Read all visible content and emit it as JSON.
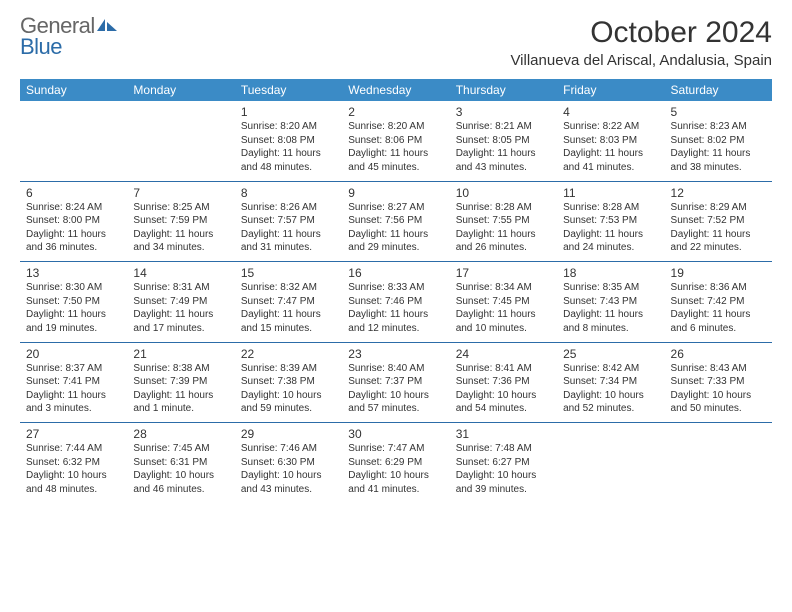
{
  "logo": {
    "word1": "General",
    "word2": "Blue"
  },
  "title": "October 2024",
  "location": "Villanueva del Ariscal, Andalusia, Spain",
  "colors": {
    "header_bg": "#3b8bc6",
    "divider": "#2c6ca8",
    "logo_blue": "#2c6ca8",
    "logo_gray": "#666666",
    "text": "#333333"
  },
  "day_headers": [
    "Sunday",
    "Monday",
    "Tuesday",
    "Wednesday",
    "Thursday",
    "Friday",
    "Saturday"
  ],
  "weeks": [
    [
      null,
      null,
      {
        "num": "1",
        "sunrise": "Sunrise: 8:20 AM",
        "sunset": "Sunset: 8:08 PM",
        "day1": "Daylight: 11 hours",
        "day2": "and 48 minutes."
      },
      {
        "num": "2",
        "sunrise": "Sunrise: 8:20 AM",
        "sunset": "Sunset: 8:06 PM",
        "day1": "Daylight: 11 hours",
        "day2": "and 45 minutes."
      },
      {
        "num": "3",
        "sunrise": "Sunrise: 8:21 AM",
        "sunset": "Sunset: 8:05 PM",
        "day1": "Daylight: 11 hours",
        "day2": "and 43 minutes."
      },
      {
        "num": "4",
        "sunrise": "Sunrise: 8:22 AM",
        "sunset": "Sunset: 8:03 PM",
        "day1": "Daylight: 11 hours",
        "day2": "and 41 minutes."
      },
      {
        "num": "5",
        "sunrise": "Sunrise: 8:23 AM",
        "sunset": "Sunset: 8:02 PM",
        "day1": "Daylight: 11 hours",
        "day2": "and 38 minutes."
      }
    ],
    [
      {
        "num": "6",
        "sunrise": "Sunrise: 8:24 AM",
        "sunset": "Sunset: 8:00 PM",
        "day1": "Daylight: 11 hours",
        "day2": "and 36 minutes."
      },
      {
        "num": "7",
        "sunrise": "Sunrise: 8:25 AM",
        "sunset": "Sunset: 7:59 PM",
        "day1": "Daylight: 11 hours",
        "day2": "and 34 minutes."
      },
      {
        "num": "8",
        "sunrise": "Sunrise: 8:26 AM",
        "sunset": "Sunset: 7:57 PM",
        "day1": "Daylight: 11 hours",
        "day2": "and 31 minutes."
      },
      {
        "num": "9",
        "sunrise": "Sunrise: 8:27 AM",
        "sunset": "Sunset: 7:56 PM",
        "day1": "Daylight: 11 hours",
        "day2": "and 29 minutes."
      },
      {
        "num": "10",
        "sunrise": "Sunrise: 8:28 AM",
        "sunset": "Sunset: 7:55 PM",
        "day1": "Daylight: 11 hours",
        "day2": "and 26 minutes."
      },
      {
        "num": "11",
        "sunrise": "Sunrise: 8:28 AM",
        "sunset": "Sunset: 7:53 PM",
        "day1": "Daylight: 11 hours",
        "day2": "and 24 minutes."
      },
      {
        "num": "12",
        "sunrise": "Sunrise: 8:29 AM",
        "sunset": "Sunset: 7:52 PM",
        "day1": "Daylight: 11 hours",
        "day2": "and 22 minutes."
      }
    ],
    [
      {
        "num": "13",
        "sunrise": "Sunrise: 8:30 AM",
        "sunset": "Sunset: 7:50 PM",
        "day1": "Daylight: 11 hours",
        "day2": "and 19 minutes."
      },
      {
        "num": "14",
        "sunrise": "Sunrise: 8:31 AM",
        "sunset": "Sunset: 7:49 PM",
        "day1": "Daylight: 11 hours",
        "day2": "and 17 minutes."
      },
      {
        "num": "15",
        "sunrise": "Sunrise: 8:32 AM",
        "sunset": "Sunset: 7:47 PM",
        "day1": "Daylight: 11 hours",
        "day2": "and 15 minutes."
      },
      {
        "num": "16",
        "sunrise": "Sunrise: 8:33 AM",
        "sunset": "Sunset: 7:46 PM",
        "day1": "Daylight: 11 hours",
        "day2": "and 12 minutes."
      },
      {
        "num": "17",
        "sunrise": "Sunrise: 8:34 AM",
        "sunset": "Sunset: 7:45 PM",
        "day1": "Daylight: 11 hours",
        "day2": "and 10 minutes."
      },
      {
        "num": "18",
        "sunrise": "Sunrise: 8:35 AM",
        "sunset": "Sunset: 7:43 PM",
        "day1": "Daylight: 11 hours",
        "day2": "and 8 minutes."
      },
      {
        "num": "19",
        "sunrise": "Sunrise: 8:36 AM",
        "sunset": "Sunset: 7:42 PM",
        "day1": "Daylight: 11 hours",
        "day2": "and 6 minutes."
      }
    ],
    [
      {
        "num": "20",
        "sunrise": "Sunrise: 8:37 AM",
        "sunset": "Sunset: 7:41 PM",
        "day1": "Daylight: 11 hours",
        "day2": "and 3 minutes."
      },
      {
        "num": "21",
        "sunrise": "Sunrise: 8:38 AM",
        "sunset": "Sunset: 7:39 PM",
        "day1": "Daylight: 11 hours",
        "day2": "and 1 minute."
      },
      {
        "num": "22",
        "sunrise": "Sunrise: 8:39 AM",
        "sunset": "Sunset: 7:38 PM",
        "day1": "Daylight: 10 hours",
        "day2": "and 59 minutes."
      },
      {
        "num": "23",
        "sunrise": "Sunrise: 8:40 AM",
        "sunset": "Sunset: 7:37 PM",
        "day1": "Daylight: 10 hours",
        "day2": "and 57 minutes."
      },
      {
        "num": "24",
        "sunrise": "Sunrise: 8:41 AM",
        "sunset": "Sunset: 7:36 PM",
        "day1": "Daylight: 10 hours",
        "day2": "and 54 minutes."
      },
      {
        "num": "25",
        "sunrise": "Sunrise: 8:42 AM",
        "sunset": "Sunset: 7:34 PM",
        "day1": "Daylight: 10 hours",
        "day2": "and 52 minutes."
      },
      {
        "num": "26",
        "sunrise": "Sunrise: 8:43 AM",
        "sunset": "Sunset: 7:33 PM",
        "day1": "Daylight: 10 hours",
        "day2": "and 50 minutes."
      }
    ],
    [
      {
        "num": "27",
        "sunrise": "Sunrise: 7:44 AM",
        "sunset": "Sunset: 6:32 PM",
        "day1": "Daylight: 10 hours",
        "day2": "and 48 minutes."
      },
      {
        "num": "28",
        "sunrise": "Sunrise: 7:45 AM",
        "sunset": "Sunset: 6:31 PM",
        "day1": "Daylight: 10 hours",
        "day2": "and 46 minutes."
      },
      {
        "num": "29",
        "sunrise": "Sunrise: 7:46 AM",
        "sunset": "Sunset: 6:30 PM",
        "day1": "Daylight: 10 hours",
        "day2": "and 43 minutes."
      },
      {
        "num": "30",
        "sunrise": "Sunrise: 7:47 AM",
        "sunset": "Sunset: 6:29 PM",
        "day1": "Daylight: 10 hours",
        "day2": "and 41 minutes."
      },
      {
        "num": "31",
        "sunrise": "Sunrise: 7:48 AM",
        "sunset": "Sunset: 6:27 PM",
        "day1": "Daylight: 10 hours",
        "day2": "and 39 minutes."
      },
      null,
      null
    ]
  ]
}
